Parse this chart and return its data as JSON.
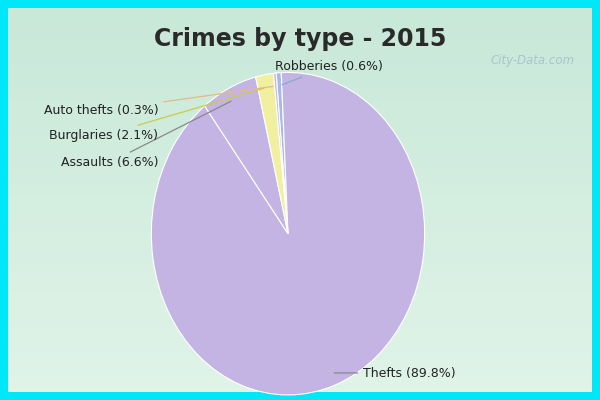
{
  "title": "Crimes by type - 2015",
  "slices": [
    {
      "label": "Thefts (89.8%)",
      "value": 89.8,
      "color": "#c4b4e4"
    },
    {
      "label": "Assaults (6.6%)",
      "value": 6.6,
      "color": "#c4b4e4"
    },
    {
      "label": "Burglaries (2.1%)",
      "value": 2.1,
      "color": "#f0f0a0"
    },
    {
      "label": "Auto thefts (0.3%)",
      "value": 0.3,
      "color": "#c4b4e4"
    },
    {
      "label": "Robberies (0.6%)",
      "value": 0.6,
      "color": "#a8b8e8"
    }
  ],
  "border_color": "#00e8f8",
  "border_thickness": 8,
  "bg_color_top": "#c8e8d8",
  "bg_color_bottom": "#e0f4e8",
  "watermark": "City-Data.com",
  "title_fontsize": 17,
  "label_fontsize": 9,
  "title_color": "#2a2a2a"
}
